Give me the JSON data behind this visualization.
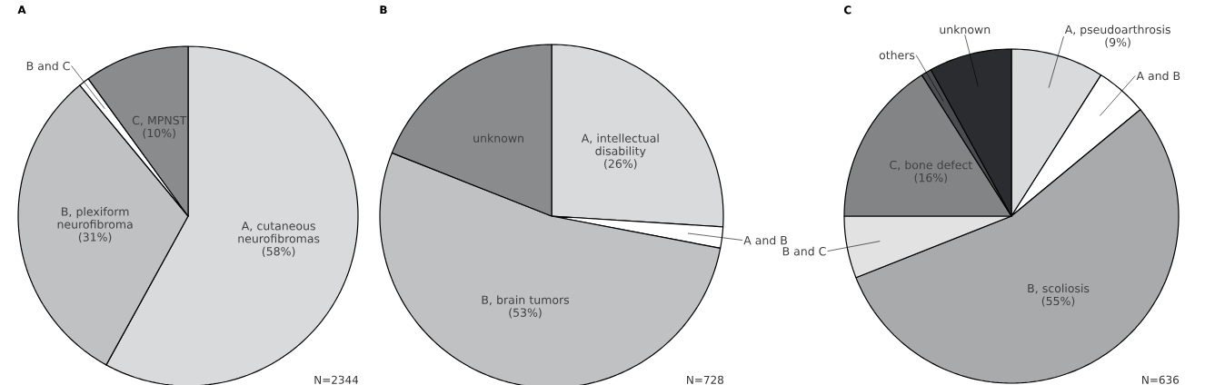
{
  "chart_data": [
    {
      "type": "pie",
      "title": "A",
      "categories": [
        "A, cutaneous neurofibromas",
        "B, plexiform neurofibroma",
        "B and C",
        "C, MPNST"
      ],
      "values": [
        58,
        31,
        1,
        10
      ],
      "value_labels": [
        "(58%)",
        "(31%)",
        null,
        "(10%)"
      ],
      "colors": [
        "#d9dadb",
        "#c0c1c2",
        "#ffffff",
        "#8a8b8d"
      ],
      "annotations": [
        "N=2344"
      ]
    },
    {
      "type": "pie",
      "title": "B",
      "categories": [
        "A, intellectual disability",
        "A and B",
        "B, brain tumors",
        "unknown"
      ],
      "values": [
        26,
        2,
        53,
        19
      ],
      "value_labels": [
        "(26%)",
        null,
        "(53%)",
        null
      ],
      "colors": [
        "#d9dadb",
        "#ffffff",
        "#c0c1c2",
        "#8a8b8d"
      ],
      "annotations": [
        "N=728"
      ]
    },
    {
      "type": "pie",
      "title": "C",
      "categories": [
        "A, pseudoarthrosis",
        "A and B",
        "B, scoliosis",
        "B and C",
        "C, bone defect",
        "others",
        "unknown"
      ],
      "values": [
        9,
        5,
        55,
        6,
        16,
        1,
        8
      ],
      "value_labels": [
        "(9%)",
        null,
        "(55%)",
        null,
        "(16%)",
        null,
        null
      ],
      "colors": [
        "#d9dadb",
        "#ffffff",
        "#a9aaab",
        "#e2e2e2",
        "#838486",
        "#4a4c4f",
        "#2a2c2f"
      ],
      "annotations": [
        "N=636"
      ]
    }
  ]
}
